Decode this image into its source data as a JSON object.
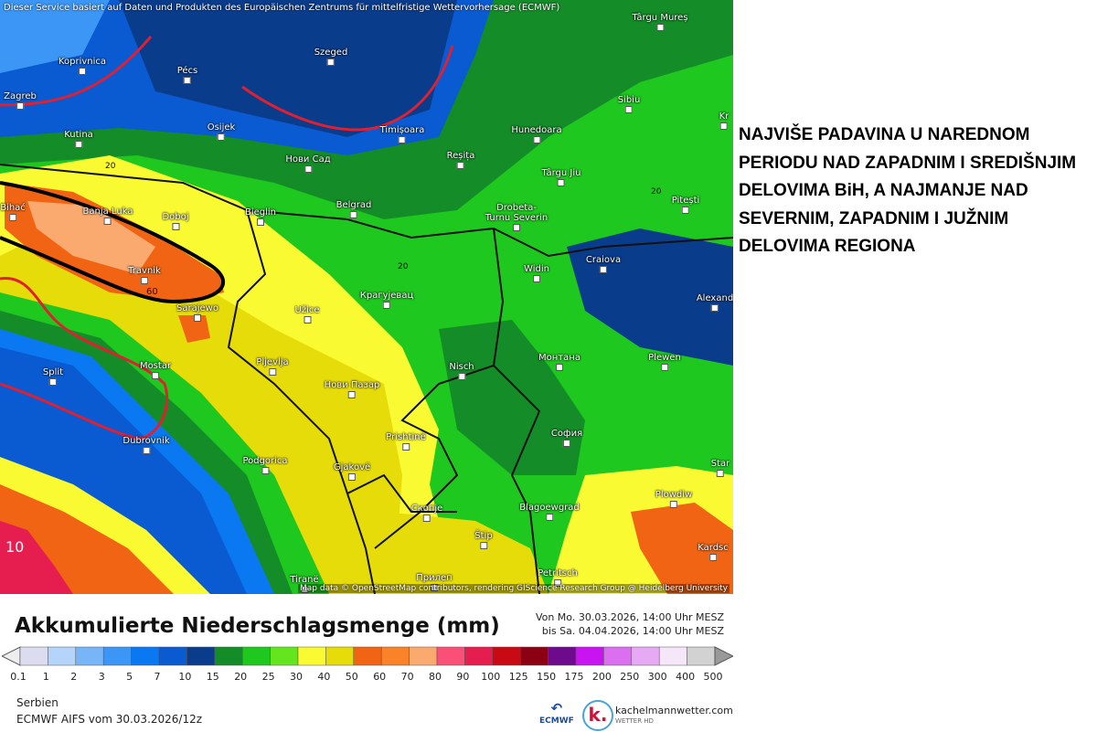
{
  "map": {
    "disclaimer": "Dieser Service basiert auf Daten und Produkten des Europäischen Zentrums für mittelfristige Wettervorhersage (ECMWF)",
    "credit": "Map data © OpenStreetMap contributors, rendering GIScience Research Group @ Heidelberg University",
    "contour_labels": [
      "20",
      "20",
      "20",
      "60",
      "10"
    ],
    "cities": [
      "Târgu Mureș",
      "Koprivnica",
      "Pécs",
      "Szeged",
      "Zagreb",
      "Timișoara",
      "Hunedoara",
      "Sibiu",
      "Kr",
      "Kutina",
      "Osijek",
      "Нови Сад",
      "Reșița",
      "Târgu Jiu",
      "Pitești",
      "Bihać",
      "Banja Luka",
      "Doboj",
      "Bieglin",
      "Belgrad",
      "Drobeta-Turnu Severin",
      "Craiova",
      "Travnik",
      "Крагујевац",
      "Widin",
      "Alexand",
      "Sarajewo",
      "Užice",
      "Split",
      "Mostar",
      "Pljevlja",
      "Нови Пазар",
      "Nisch",
      "Монтана",
      "Plewen",
      "Dubrovnik",
      "Prishtinë",
      "София",
      "Podgorica",
      "Gjakovë",
      "Star",
      "Скопје",
      "Blagoewgrad",
      "Plowdiw",
      "Štip",
      "Kardsc",
      "Tiranë",
      "Прилеп",
      "Petritsch"
    ]
  },
  "annotation": "NAJVIŠE PADAVINA U NAREDNOM PERIODU NAD ZAPADNIM I SREDIŠNJIM DELOVIMA BiH, A NAJMANJE NAD SEVERNIM, ZAPADNIM I JUŽNIM DELOVIMA REGIONA",
  "legend": {
    "title": "Akkumulierte Niederschlagsmenge (mm)",
    "from": "Von Mo. 30.03.2026, 14:00 Uhr MESZ",
    "to": "bis Sa. 04.04.2026, 14:00 Uhr MESZ",
    "ticks": [
      "0.1",
      "1",
      "2",
      "3",
      "5",
      "7",
      "10",
      "15",
      "20",
      "25",
      "30",
      "40",
      "50",
      "60",
      "70",
      "80",
      "90",
      "100",
      "125",
      "150",
      "175",
      "200",
      "250",
      "300",
      "400",
      "500"
    ],
    "colors": [
      "#dcdcf0",
      "#b4d4fa",
      "#78b4f8",
      "#3c96f5",
      "#0a78f0",
      "#0a5ad2",
      "#0a3c8c",
      "#148c28",
      "#1ec81e",
      "#64e61e",
      "#fafa32",
      "#e6dc0a",
      "#f06414",
      "#fa8228",
      "#faaa6e",
      "#fa5078",
      "#e61e50",
      "#c80a14",
      "#8c0014",
      "#6e0a8c",
      "#c814f0",
      "#dc6ef0",
      "#e6aaf5",
      "#f5e6fa",
      "#d2d2d2"
    ],
    "region": "Serbien",
    "model": "ECMWF AIFS vom  30.03.2026/12z",
    "ecmwf_logo": "ECMWF",
    "brand": "kachelmannwetter.com",
    "brand_sub": "WETTER HD",
    "brand_logo": "k."
  }
}
